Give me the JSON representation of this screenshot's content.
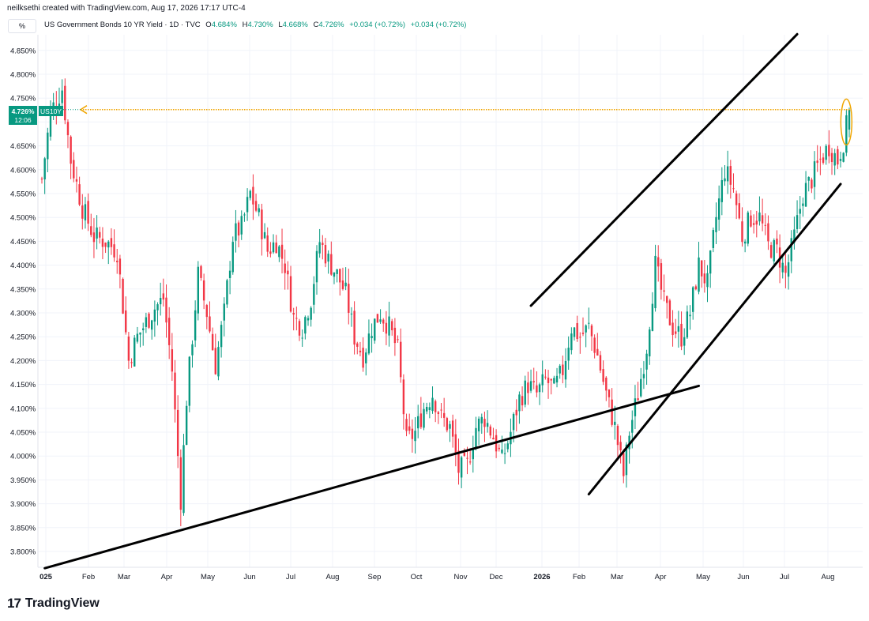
{
  "header": {
    "credit": "neilksethi created with TradingView.com, Aug 17, 2026 17:17 UTC-4",
    "percent_button": "%"
  },
  "legend": {
    "symbol_title": "US Government Bonds 10 YR Yield · 1D · TVC",
    "open_label": "O",
    "open_value": "4.684%",
    "high_label": "H",
    "high_value": "4.730%",
    "low_label": "L",
    "low_value": "4.668%",
    "close_label": "C",
    "close_value": "4.726%",
    "change_1": "+0.034 (+0.72%)",
    "change_2": "+0.034 (+0.72%)"
  },
  "price_tag": {
    "value": "4.726%",
    "symbol": "US10Y",
    "countdown": "12:06"
  },
  "footer": {
    "logo_mark": "17",
    "brand": "TradingView"
  },
  "colors": {
    "up": "#089981",
    "down": "#f23645",
    "hline": "#f0a500",
    "trend": "#000000",
    "tag": "#089981"
  },
  "chart_data": {
    "type": "candlestick",
    "y_axis_side": "left",
    "ylim": [
      3.77,
      4.87
    ],
    "y_ticks": [
      "4.850%",
      "4.800%",
      "4.750%",
      "4.700%",
      "4.650%",
      "4.600%",
      "4.550%",
      "4.500%",
      "4.450%",
      "4.400%",
      "4.350%",
      "4.300%",
      "4.250%",
      "4.200%",
      "4.150%",
      "4.100%",
      "4.050%",
      "4.000%",
      "3.950%",
      "3.900%",
      "3.850%",
      "3.800%"
    ],
    "y_tick_values": [
      4.85,
      4.8,
      4.75,
      4.7,
      4.65,
      4.6,
      4.55,
      4.5,
      4.45,
      4.4,
      4.35,
      4.3,
      4.25,
      4.2,
      4.15,
      4.1,
      4.05,
      4.0,
      3.95,
      3.9,
      3.85,
      3.8
    ],
    "x_ticks": [
      "025",
      "Feb",
      "Mar",
      "Apr",
      "May",
      "Jun",
      "Jul",
      "Aug",
      "Sep",
      "Oct",
      "Nov",
      "Dec",
      "2026",
      "Feb",
      "Mar",
      "Apr",
      "May",
      "Jun",
      "Jul",
      "Aug"
    ],
    "x_tick_bold": [
      true,
      false,
      false,
      false,
      false,
      false,
      false,
      false,
      false,
      false,
      false,
      false,
      true,
      false,
      false,
      false,
      false,
      false,
      false,
      false
    ],
    "series_path": [
      [
        0,
        4.58
      ],
      [
        3,
        4.72
      ],
      [
        7,
        4.77
      ],
      [
        10,
        4.62
      ],
      [
        14,
        4.52
      ],
      [
        18,
        4.46
      ],
      [
        22,
        4.45
      ],
      [
        26,
        4.43
      ],
      [
        30,
        4.2
      ],
      [
        33,
        4.25
      ],
      [
        36,
        4.28
      ],
      [
        39,
        4.31
      ],
      [
        42,
        4.33
      ],
      [
        45,
        4.18
      ],
      [
        48,
        3.91
      ],
      [
        50,
        4.12
      ],
      [
        54,
        4.38
      ],
      [
        57,
        4.3
      ],
      [
        60,
        4.19
      ],
      [
        63,
        4.3
      ],
      [
        66,
        4.46
      ],
      [
        69,
        4.48
      ],
      [
        72,
        4.55
      ],
      [
        75,
        4.5
      ],
      [
        78,
        4.43
      ],
      [
        81,
        4.45
      ],
      [
        84,
        4.4
      ],
      [
        87,
        4.29
      ],
      [
        90,
        4.27
      ],
      [
        93,
        4.33
      ],
      [
        96,
        4.45
      ],
      [
        99,
        4.41
      ],
      [
        102,
        4.38
      ],
      [
        105,
        4.34
      ],
      [
        108,
        4.25
      ],
      [
        111,
        4.21
      ],
      [
        114,
        4.27
      ],
      [
        117,
        4.3
      ],
      [
        120,
        4.27
      ],
      [
        123,
        4.22
      ],
      [
        126,
        4.03
      ],
      [
        129,
        4.05
      ],
      [
        132,
        4.1
      ],
      [
        135,
        4.13
      ],
      [
        138,
        4.08
      ],
      [
        141,
        4.06
      ],
      [
        144,
        3.97
      ],
      [
        147,
        3.98
      ],
      [
        150,
        4.06
      ],
      [
        153,
        4.08
      ],
      [
        156,
        4.04
      ],
      [
        159,
        3.99
      ],
      [
        162,
        4.05
      ],
      [
        165,
        4.12
      ],
      [
        168,
        4.15
      ],
      [
        171,
        4.13
      ],
      [
        174,
        4.16
      ],
      [
        177,
        4.14
      ],
      [
        180,
        4.18
      ],
      [
        183,
        4.27
      ],
      [
        186,
        4.25
      ],
      [
        189,
        4.27
      ],
      [
        192,
        4.21
      ],
      [
        195,
        4.13
      ],
      [
        198,
        4.06
      ],
      [
        201,
        3.96
      ],
      [
        203,
        4.05
      ],
      [
        206,
        4.13
      ],
      [
        209,
        4.23
      ],
      [
        212,
        4.4
      ],
      [
        215,
        4.32
      ],
      [
        218,
        4.27
      ],
      [
        221,
        4.25
      ],
      [
        224,
        4.3
      ],
      [
        227,
        4.4
      ],
      [
        230,
        4.36
      ],
      [
        233,
        4.5
      ],
      [
        236,
        4.6
      ],
      [
        239,
        4.56
      ],
      [
        242,
        4.46
      ],
      [
        245,
        4.5
      ],
      [
        248,
        4.5
      ],
      [
        251,
        4.44
      ],
      [
        254,
        4.43
      ],
      [
        257,
        4.38
      ],
      [
        260,
        4.46
      ],
      [
        263,
        4.55
      ],
      [
        266,
        4.58
      ],
      [
        269,
        4.62
      ],
      [
        272,
        4.65
      ],
      [
        275,
        4.62
      ],
      [
        277,
        4.66
      ],
      [
        279,
        4.72
      ]
    ],
    "series_index_range": [
      0,
      279
    ],
    "last_candle": {
      "open": 4.684,
      "high": 4.73,
      "low": 4.668,
      "close": 4.726
    },
    "horizontal_line": {
      "value": 4.726,
      "style": "dotted",
      "arrow": "left"
    },
    "trend_lines": [
      {
        "from": [
          1,
          3.765
        ],
        "to": [
          227,
          4.147
        ]
      },
      {
        "from": [
          169,
          4.315
        ],
        "to": [
          261,
          4.884
        ]
      },
      {
        "from": [
          189,
          3.92
        ],
        "to": [
          276,
          4.57
        ]
      }
    ],
    "highlight_ellipse": {
      "index": 278,
      "center": 4.7
    }
  }
}
